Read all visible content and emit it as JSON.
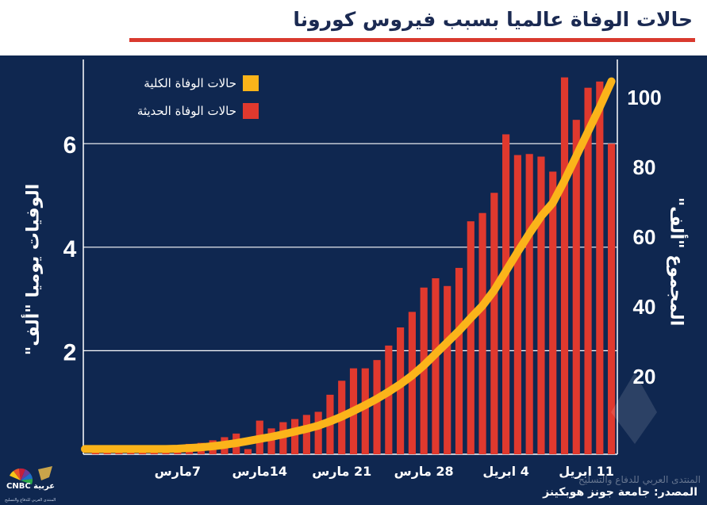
{
  "header": {
    "title": "حالات الوفاة عالميا بسبب فيروس كورونا"
  },
  "axes": {
    "left_label": "الوفيات يوميا \"ألف\"",
    "right_label": "المجموع \"ألف\""
  },
  "footer": {
    "source": "المصدر: جامعة جونز هوبكينز",
    "logo_text": "CNBC عربية",
    "logo_sub": "المنتدى العربي للدفاع والتسليح",
    "watermark": "المنتدى العربي للدفاع والتسليح"
  },
  "colors": {
    "background": "#0f2750",
    "bars": "#e0392e",
    "line": "#fbb41a",
    "title": "#1b2a52",
    "rule": "#d93a2f",
    "grid": "#ffffff"
  },
  "chart_data": {
    "type": "bar+line",
    "title": "حالات الوفاة عالميا بسبب فيروس كورونا",
    "x_tick_labels": [
      "7مارس",
      "14مارس",
      "21 مارس",
      "28 مارس",
      "4 ابريل",
      "11 ابريل"
    ],
    "left_axis": {
      "label": "الوفيات يوميا \"ألف\"",
      "ticks": [
        "2",
        "4",
        "6"
      ],
      "range": [
        0,
        7.6
      ]
    },
    "right_axis": {
      "label": "المجموع \"ألف\"",
      "ticks": [
        "20",
        "40",
        "60",
        "80",
        "100"
      ],
      "range": [
        -10,
        115
      ]
    },
    "legend": {
      "placement": "top-left",
      "items": [
        "حالات الوفاة الكلية",
        "حالات الوفاة الحديثة"
      ]
    },
    "grid": "horizontal",
    "series": [
      {
        "name": "حالات الوفاة الحديثة",
        "type": "bar",
        "axis": "left",
        "values": [
          0.06,
          0.06,
          0.08,
          0.08,
          0.1,
          0.1,
          0.13,
          0.17,
          0.2,
          0.22,
          0.27,
          0.33,
          0.4,
          0.1,
          0.65,
          0.5,
          0.62,
          0.68,
          0.76,
          0.82,
          1.15,
          1.42,
          1.66,
          1.66,
          1.82,
          2.1,
          2.45,
          2.75,
          3.22,
          3.4,
          3.25,
          3.6,
          4.5,
          4.66,
          5.05,
          6.18,
          5.78,
          5.8,
          5.75,
          5.46,
          7.28,
          6.46,
          7.08,
          7.2,
          6.0
        ]
      },
      {
        "name": "حالات الوفاة الكلية",
        "type": "line",
        "axis": "right",
        "values": [
          -1,
          -1,
          -1,
          -1,
          -1,
          -1,
          -1,
          -0.9,
          -0.7,
          -0.5,
          -0.2,
          0.2,
          0.7,
          1.3,
          1.9,
          2.5,
          3.2,
          4.0,
          4.8,
          5.7,
          6.9,
          8.3,
          9.9,
          11.6,
          13.4,
          15.4,
          17.6,
          20.1,
          23.0,
          26.3,
          29.6,
          32.9,
          36.6,
          40.1,
          44.5,
          50.0,
          55.5,
          60.8,
          65.7,
          69.6,
          76.0,
          83.0,
          90.0,
          97.0,
          104.4
        ]
      }
    ]
  }
}
